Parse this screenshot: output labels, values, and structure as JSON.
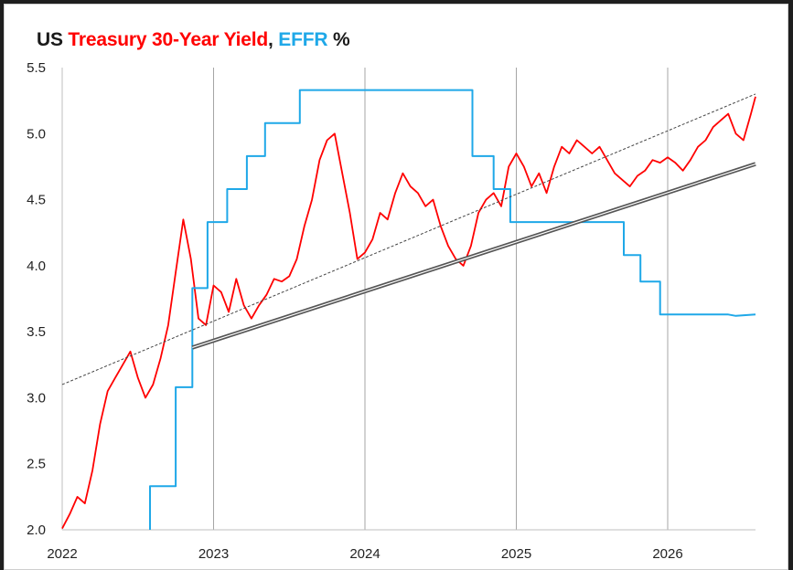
{
  "title": {
    "part1": "US ",
    "part2": "Treasury 30-Year Yield",
    "part3": ", ",
    "part4": "EFFR",
    "part5": " %"
  },
  "colors": {
    "title_text": "#1a1a1a",
    "yield": "#ff0000",
    "effr": "#1fa8e8",
    "grid": "#a6a6a6",
    "trend_dashed": "#444444",
    "trend_solid": "#555555"
  },
  "chart_data": {
    "type": "line",
    "title": "US Treasury 30-Year Yield, EFFR %",
    "xlim": [
      2022.0,
      2026.58
    ],
    "ylim": [
      2.0,
      5.5
    ],
    "x_ticks": [
      2022,
      2023,
      2024,
      2025,
      2026
    ],
    "x_tick_labels": [
      "2022",
      "2023",
      "2024",
      "2025",
      "2026"
    ],
    "y_ticks": [
      2.0,
      2.5,
      3.0,
      3.5,
      4.0,
      4.5,
      5.0,
      5.5
    ],
    "y_tick_labels": [
      "2.0",
      "2.5",
      "3.0",
      "3.5",
      "4.0",
      "4.5",
      "5.0",
      "5.5"
    ],
    "grid": "vertical",
    "series": [
      {
        "key": "yield",
        "points": [
          [
            2022.0,
            2.01
          ],
          [
            2022.05,
            2.12
          ],
          [
            2022.1,
            2.25
          ],
          [
            2022.15,
            2.2
          ],
          [
            2022.2,
            2.45
          ],
          [
            2022.25,
            2.8
          ],
          [
            2022.3,
            3.05
          ],
          [
            2022.35,
            3.15
          ],
          [
            2022.4,
            3.25
          ],
          [
            2022.45,
            3.35
          ],
          [
            2022.5,
            3.15
          ],
          [
            2022.55,
            3.0
          ],
          [
            2022.6,
            3.1
          ],
          [
            2022.65,
            3.3
          ],
          [
            2022.7,
            3.55
          ],
          [
            2022.75,
            3.95
          ],
          [
            2022.8,
            4.35
          ],
          [
            2022.85,
            4.05
          ],
          [
            2022.9,
            3.6
          ],
          [
            2022.95,
            3.55
          ],
          [
            2023.0,
            3.85
          ],
          [
            2023.05,
            3.8
          ],
          [
            2023.1,
            3.65
          ],
          [
            2023.15,
            3.9
          ],
          [
            2023.2,
            3.7
          ],
          [
            2023.25,
            3.6
          ],
          [
            2023.3,
            3.7
          ],
          [
            2023.35,
            3.78
          ],
          [
            2023.4,
            3.9
          ],
          [
            2023.45,
            3.88
          ],
          [
            2023.5,
            3.92
          ],
          [
            2023.55,
            4.05
          ],
          [
            2023.6,
            4.3
          ],
          [
            2023.65,
            4.5
          ],
          [
            2023.7,
            4.8
          ],
          [
            2023.75,
            4.95
          ],
          [
            2023.8,
            5.0
          ],
          [
            2023.85,
            4.7
          ],
          [
            2023.9,
            4.4
          ],
          [
            2023.95,
            4.05
          ],
          [
            2024.0,
            4.1
          ],
          [
            2024.05,
            4.2
          ],
          [
            2024.1,
            4.4
          ],
          [
            2024.15,
            4.35
          ],
          [
            2024.2,
            4.55
          ],
          [
            2024.25,
            4.7
          ],
          [
            2024.3,
            4.6
          ],
          [
            2024.35,
            4.55
          ],
          [
            2024.4,
            4.45
          ],
          [
            2024.45,
            4.5
          ],
          [
            2024.5,
            4.3
          ],
          [
            2024.55,
            4.15
          ],
          [
            2024.6,
            4.05
          ],
          [
            2024.65,
            4.0
          ],
          [
            2024.7,
            4.15
          ],
          [
            2024.75,
            4.4
          ],
          [
            2024.8,
            4.5
          ],
          [
            2024.85,
            4.55
          ],
          [
            2024.9,
            4.45
          ],
          [
            2024.95,
            4.75
          ],
          [
            2025.0,
            4.85
          ],
          [
            2025.05,
            4.75
          ],
          [
            2025.1,
            4.6
          ],
          [
            2025.15,
            4.7
          ],
          [
            2025.2,
            4.55
          ],
          [
            2025.25,
            4.75
          ],
          [
            2025.3,
            4.9
          ],
          [
            2025.35,
            4.85
          ],
          [
            2025.4,
            4.95
          ],
          [
            2025.45,
            4.9
          ],
          [
            2025.5,
            4.85
          ],
          [
            2025.55,
            4.9
          ],
          [
            2025.6,
            4.8
          ],
          [
            2025.65,
            4.7
          ],
          [
            2025.7,
            4.65
          ],
          [
            2025.75,
            4.6
          ],
          [
            2025.8,
            4.68
          ],
          [
            2025.85,
            4.72
          ],
          [
            2025.9,
            4.8
          ],
          [
            2025.95,
            4.78
          ],
          [
            2026.0,
            4.82
          ],
          [
            2026.05,
            4.78
          ],
          [
            2026.1,
            4.72
          ],
          [
            2026.15,
            4.8
          ],
          [
            2026.2,
            4.9
          ],
          [
            2026.25,
            4.95
          ],
          [
            2026.3,
            5.05
          ],
          [
            2026.35,
            5.1
          ],
          [
            2026.4,
            5.15
          ],
          [
            2026.45,
            5.0
          ],
          [
            2026.5,
            4.95
          ],
          [
            2026.55,
            5.15
          ],
          [
            2026.58,
            5.28
          ]
        ]
      },
      {
        "key": "effr",
        "points": [
          [
            2022.58,
            2.0
          ],
          [
            2022.58,
            2.33
          ],
          [
            2022.75,
            2.33
          ],
          [
            2022.75,
            3.08
          ],
          [
            2022.86,
            3.08
          ],
          [
            2022.86,
            3.83
          ],
          [
            2022.96,
            3.83
          ],
          [
            2022.96,
            4.33
          ],
          [
            2023.09,
            4.33
          ],
          [
            2023.09,
            4.58
          ],
          [
            2023.22,
            4.58
          ],
          [
            2023.22,
            4.83
          ],
          [
            2023.34,
            4.83
          ],
          [
            2023.34,
            5.08
          ],
          [
            2023.57,
            5.08
          ],
          [
            2023.57,
            5.33
          ],
          [
            2024.71,
            5.33
          ],
          [
            2024.71,
            4.83
          ],
          [
            2024.85,
            4.83
          ],
          [
            2024.85,
            4.58
          ],
          [
            2024.96,
            4.58
          ],
          [
            2024.96,
            4.33
          ],
          [
            2025.71,
            4.33
          ],
          [
            2025.71,
            4.08
          ],
          [
            2025.82,
            4.08
          ],
          [
            2025.82,
            3.88
          ],
          [
            2025.95,
            3.88
          ],
          [
            2025.95,
            3.63
          ],
          [
            2026.4,
            3.63
          ],
          [
            2026.45,
            3.62
          ],
          [
            2026.58,
            3.63
          ]
        ]
      }
    ],
    "trendlines": [
      {
        "style": "dashed",
        "from": [
          2022.0,
          3.1
        ],
        "to": [
          2026.58,
          5.3
        ]
      },
      {
        "style": "solid",
        "from": [
          2022.86,
          3.38
        ],
        "to": [
          2026.58,
          4.77
        ]
      }
    ]
  }
}
